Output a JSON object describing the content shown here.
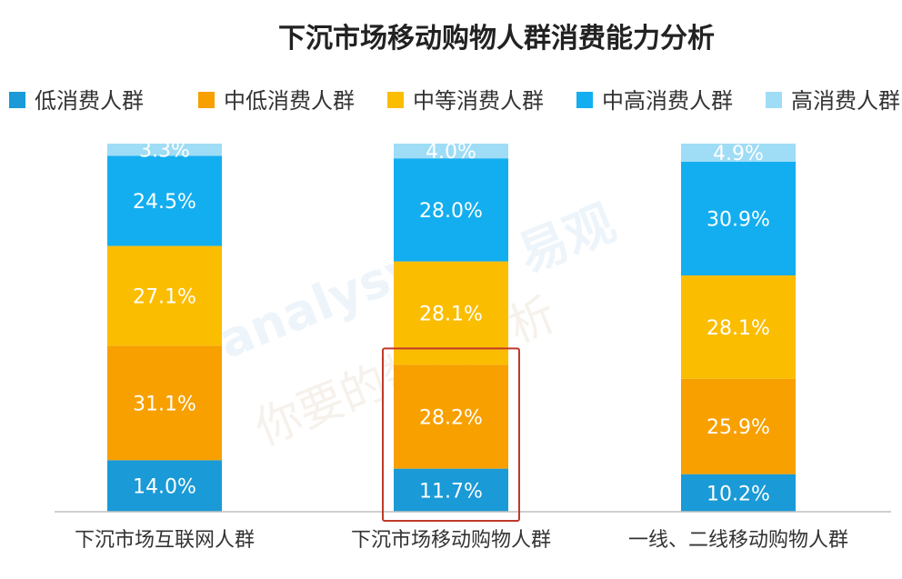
{
  "chart_data": {
    "type": "bar",
    "stacked": true,
    "title": "下沉市场移动购物人群消费能力分析",
    "categories": [
      "下沉市场互联网人群",
      "下沉市场移动购物人群",
      "一线、二线移动购物人群"
    ],
    "series": [
      {
        "name": "低消费人群",
        "color": "#1a9ad6",
        "values": [
          14.0,
          11.7,
          10.2
        ],
        "labels": [
          "14.0%",
          "11.7%",
          "10.2%"
        ]
      },
      {
        "name": "中低消费人群",
        "color": "#f7a000",
        "values": [
          31.1,
          28.2,
          25.9
        ],
        "labels": [
          "31.1%",
          "28.2%",
          "25.9%"
        ]
      },
      {
        "name": "中等消费人群",
        "color": "#fbbd00",
        "values": [
          27.1,
          28.1,
          28.1
        ],
        "labels": [
          "27.1%",
          "28.1%",
          "28.1%"
        ]
      },
      {
        "name": "中高消费人群",
        "color": "#13aef0",
        "values": [
          24.5,
          28.0,
          30.9
        ],
        "labels": [
          "24.5%",
          "28.0%",
          "30.9%"
        ]
      },
      {
        "name": "高消费人群",
        "color": "#9fdcf6",
        "values": [
          3.3,
          4.0,
          4.9
        ],
        "labels": [
          "3.3%",
          "4.0%",
          "4.9%"
        ]
      }
    ],
    "ylim": [
      0,
      100
    ],
    "legend_position": "top",
    "highlight": {
      "category_index": 1,
      "series_indices": [
        0,
        1
      ],
      "color": "#c0392b"
    },
    "watermark": [
      "analysys",
      "易观",
      "你要的数据分析"
    ]
  }
}
